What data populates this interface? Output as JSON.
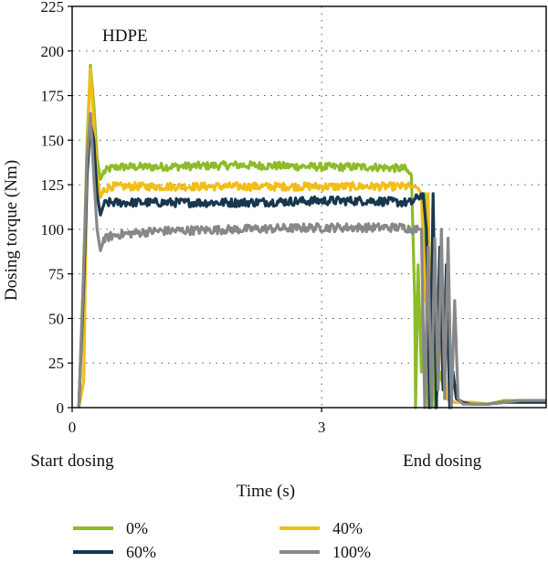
{
  "chart_data": {
    "type": "line",
    "annotation": "HDPE",
    "xlabel": "Time (s)",
    "ylabel": "Dosing torque (Nm)",
    "ylim": [
      0,
      225
    ],
    "yticks": [
      0,
      25,
      50,
      75,
      100,
      125,
      150,
      175,
      200,
      225
    ],
    "xlim": [
      0,
      5.7
    ],
    "xticks": [
      {
        "value": 0,
        "label": "0"
      },
      {
        "value": 3,
        "label": "3"
      }
    ],
    "x_annotations": [
      {
        "value": 0,
        "label": "Start dosing"
      },
      {
        "value": 4.45,
        "label": "End dosing"
      }
    ],
    "grid": "dotted",
    "legend_position": "bottom",
    "series": [
      {
        "name": "0%",
        "color": "#8dbb2a",
        "noise": 2.2,
        "x": [
          0.08,
          0.14,
          0.18,
          0.22,
          0.26,
          0.3,
          0.34,
          0.38,
          0.45,
          0.55,
          1.0,
          2.0,
          3.0,
          3.6,
          4.0,
          4.08,
          4.12,
          4.13,
          4.16,
          4.2,
          4.24,
          4.28,
          4.32,
          4.36,
          4.42,
          4.5,
          4.6,
          4.8,
          5.0,
          5.2,
          5.4,
          5.7
        ],
        "y": [
          0,
          80,
          150,
          192,
          170,
          140,
          128,
          132,
          134,
          135,
          135,
          136,
          135,
          135,
          134,
          130,
          60,
          0,
          80,
          20,
          120,
          0,
          70,
          0,
          20,
          5,
          3,
          3,
          2,
          4,
          4,
          4
        ]
      },
      {
        "name": "40%",
        "color": "#f2bd16",
        "noise": 2.2,
        "x": [
          0.08,
          0.14,
          0.18,
          0.22,
          0.26,
          0.3,
          0.34,
          0.38,
          0.45,
          0.55,
          1.0,
          2.0,
          3.0,
          3.6,
          4.0,
          4.08,
          4.12,
          4.16,
          4.2,
          4.24,
          4.28,
          4.32,
          4.36,
          4.4,
          4.44,
          4.5,
          4.6,
          4.8,
          5.0,
          5.2,
          5.4,
          5.7
        ],
        "y": [
          0,
          15,
          140,
          190,
          160,
          130,
          118,
          122,
          124,
          124,
          124,
          124,
          124,
          124,
          124,
          124,
          124,
          123,
          120,
          60,
          120,
          10,
          90,
          10,
          60,
          5,
          3,
          3,
          2,
          3,
          3,
          3
        ]
      },
      {
        "name": "60%",
        "color": "#17374f",
        "noise": 2.4,
        "x": [
          0.08,
          0.14,
          0.18,
          0.22,
          0.26,
          0.3,
          0.34,
          0.38,
          0.45,
          0.55,
          1.0,
          2.0,
          3.0,
          3.6,
          4.0,
          4.08,
          4.16,
          4.22,
          4.26,
          4.3,
          4.34,
          4.38,
          4.42,
          4.46,
          4.5,
          4.54,
          4.58,
          4.62,
          4.7,
          4.8,
          5.0,
          5.2,
          5.4,
          5.7
        ],
        "y": [
          0,
          70,
          130,
          160,
          150,
          120,
          108,
          114,
          115,
          115,
          115,
          115,
          116,
          116,
          115,
          115,
          118,
          120,
          100,
          0,
          120,
          0,
          90,
          10,
          80,
          0,
          20,
          5,
          3,
          2,
          2,
          3,
          3,
          3
        ]
      },
      {
        "name": "100%",
        "color": "#888888",
        "noise": 2.4,
        "x": [
          0.08,
          0.14,
          0.18,
          0.22,
          0.26,
          0.3,
          0.34,
          0.38,
          0.45,
          0.55,
          1.0,
          2.0,
          3.0,
          3.6,
          4.0,
          4.08,
          4.16,
          4.2,
          4.24,
          4.28,
          4.32,
          4.36,
          4.4,
          4.44,
          4.48,
          4.52,
          4.56,
          4.6,
          4.64,
          4.7,
          4.8,
          5.0,
          5.2,
          5.4,
          5.7
        ],
        "y": [
          0,
          80,
          140,
          165,
          130,
          100,
          88,
          94,
          96,
          97,
          99,
          100,
          101,
          101,
          101,
          100,
          100,
          100,
          0,
          90,
          0,
          95,
          10,
          100,
          5,
          95,
          0,
          60,
          5,
          2,
          2,
          2,
          3,
          4,
          4
        ]
      }
    ]
  }
}
